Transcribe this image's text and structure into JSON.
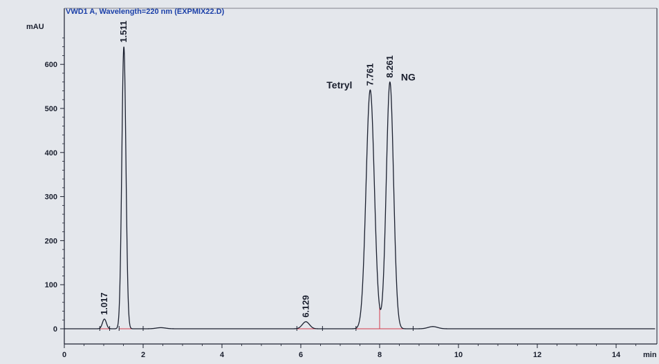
{
  "chart_data": {
    "type": "line",
    "title": "VWD1 A, Wavelength=220 nm (EXPMIX22.D)",
    "xlabel": "min",
    "ylabel": "mAU",
    "xlim": [
      0,
      15
    ],
    "ylim": [
      -30,
      690
    ],
    "x_ticks": [
      0,
      2,
      4,
      6,
      8,
      10,
      12,
      14
    ],
    "y_ticks": [
      0,
      100,
      200,
      300,
      400,
      500,
      600
    ],
    "grid": false,
    "line_color": "#1a1f2e",
    "baseline_color": "#d23a4a",
    "peaks": [
      {
        "rt": 1.017,
        "label": "1.017",
        "height": 22
      },
      {
        "rt": 1.511,
        "label": "1.511",
        "height": 640
      },
      {
        "rt": 6.129,
        "label": "6.129",
        "height": 16
      },
      {
        "rt": 7.761,
        "label": "7.761",
        "height": 542,
        "compound": "Tetryl"
      },
      {
        "rt": 8.261,
        "label": "8.261",
        "height": 560,
        "compound": "NG"
      }
    ]
  }
}
